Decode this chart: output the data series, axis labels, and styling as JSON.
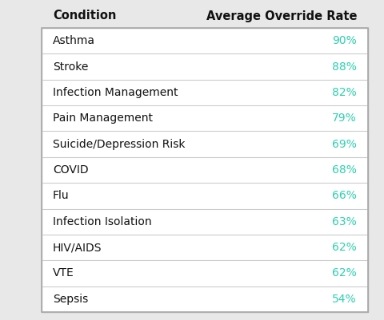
{
  "title_left": "Condition",
  "title_right": "Average Override Rate",
  "conditions": [
    "Asthma",
    "Stroke",
    "Infection Management",
    "Pain Management",
    "Suicide/Depression Risk",
    "COVID",
    "Flu",
    "Infection Isolation",
    "HIV/AIDS",
    "VTE",
    "Sepsis"
  ],
  "rates": [
    "90%",
    "88%",
    "82%",
    "79%",
    "69%",
    "68%",
    "66%",
    "63%",
    "62%",
    "62%",
    "54%"
  ],
  "bg_color": "#e8e8e8",
  "table_bg": "#ffffff",
  "header_color": "#111111",
  "condition_color": "#111111",
  "rate_color": "#2ecfb0",
  "row_line_color": "#cccccc",
  "border_color": "#aaaaaa",
  "header_fontsize": 10.5,
  "cell_fontsize": 10.0,
  "fig_width": 4.8,
  "fig_height": 4.01,
  "dpi": 100
}
